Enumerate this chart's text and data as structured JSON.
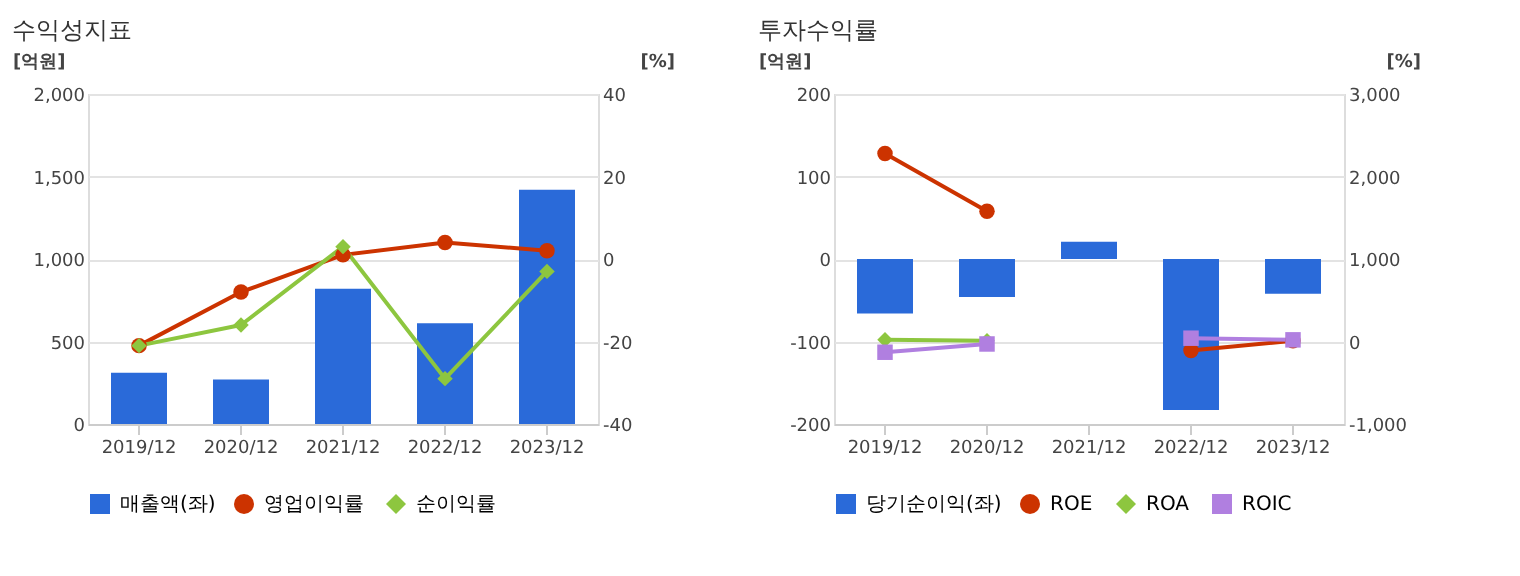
{
  "chart_data": [
    {
      "type": "bar",
      "title": "수익성지표",
      "ylabel": "[억원]",
      "y2label": "[%]",
      "categories": [
        "2019/12",
        "2020/12",
        "2021/12",
        "2022/12",
        "2023/12"
      ],
      "series": [
        {
          "name": "매출액(좌)",
          "type": "bar",
          "color": "#2a6ad9",
          "values": [
            310,
            270,
            820,
            610,
            1420
          ]
        },
        {
          "name": "영업이익률",
          "type": "line",
          "axis": "y2",
          "marker": "circle",
          "color": "#cc3300",
          "values": [
            -21,
            -8,
            1,
            4,
            2
          ]
        },
        {
          "name": "순이익률",
          "type": "line",
          "axis": "y2",
          "marker": "diamond",
          "color": "#8dc63f",
          "values": [
            -21,
            -16,
            3,
            -29,
            -3
          ]
        }
      ],
      "ylim": [
        0,
        2000
      ],
      "yticks": [
        0,
        500,
        {
          "value": 1000,
          "label": "1,000"
        },
        {
          "value": 1500,
          "label": "1,500"
        },
        {
          "value": 2000,
          "label": "2,000"
        }
      ],
      "y2lim": [
        -40,
        40
      ],
      "y2ticks": [
        -40,
        -20,
        0,
        20,
        40
      ],
      "grid": "y",
      "legend": "bottom"
    },
    {
      "type": "bar",
      "title": "투자수익률",
      "ylabel": "[억원]",
      "y2label": "[%]",
      "categories": [
        "2019/12",
        "2020/12",
        "2021/12",
        "2022/12",
        "2023/12"
      ],
      "series": [
        {
          "name": "당기순이익(좌)",
          "type": "bar",
          "color": "#2a6ad9",
          "values": [
            -66,
            -46,
            21,
            -183,
            -42
          ]
        },
        {
          "name": "ROE",
          "type": "line",
          "axis": "y2",
          "marker": "circle",
          "color": "#cc3300",
          "values": [
            2280,
            1580,
            null,
            -110,
            10
          ]
        },
        {
          "name": "ROA",
          "type": "line",
          "axis": "y2",
          "marker": "diamond",
          "color": "#8dc63f",
          "values": [
            20,
            10,
            null,
            null,
            null
          ]
        },
        {
          "name": "ROIC",
          "type": "line",
          "axis": "y2",
          "marker": "square",
          "color": "#b07fe0",
          "values": [
            -130,
            -30,
            null,
            40,
            20
          ]
        }
      ],
      "ylim": [
        -200,
        200
      ],
      "yticks": [
        -200,
        -100,
        0,
        100,
        200
      ],
      "y2lim": [
        -1000,
        3000
      ],
      "y2ticks": [
        {
          "value": -1000,
          "label": "-1,000"
        },
        0,
        {
          "value": 1000,
          "label": "1,000"
        },
        {
          "value": 2000,
          "label": "2,000"
        },
        {
          "value": 3000,
          "label": "3,000"
        }
      ],
      "grid": "y",
      "legend": "bottom"
    }
  ]
}
